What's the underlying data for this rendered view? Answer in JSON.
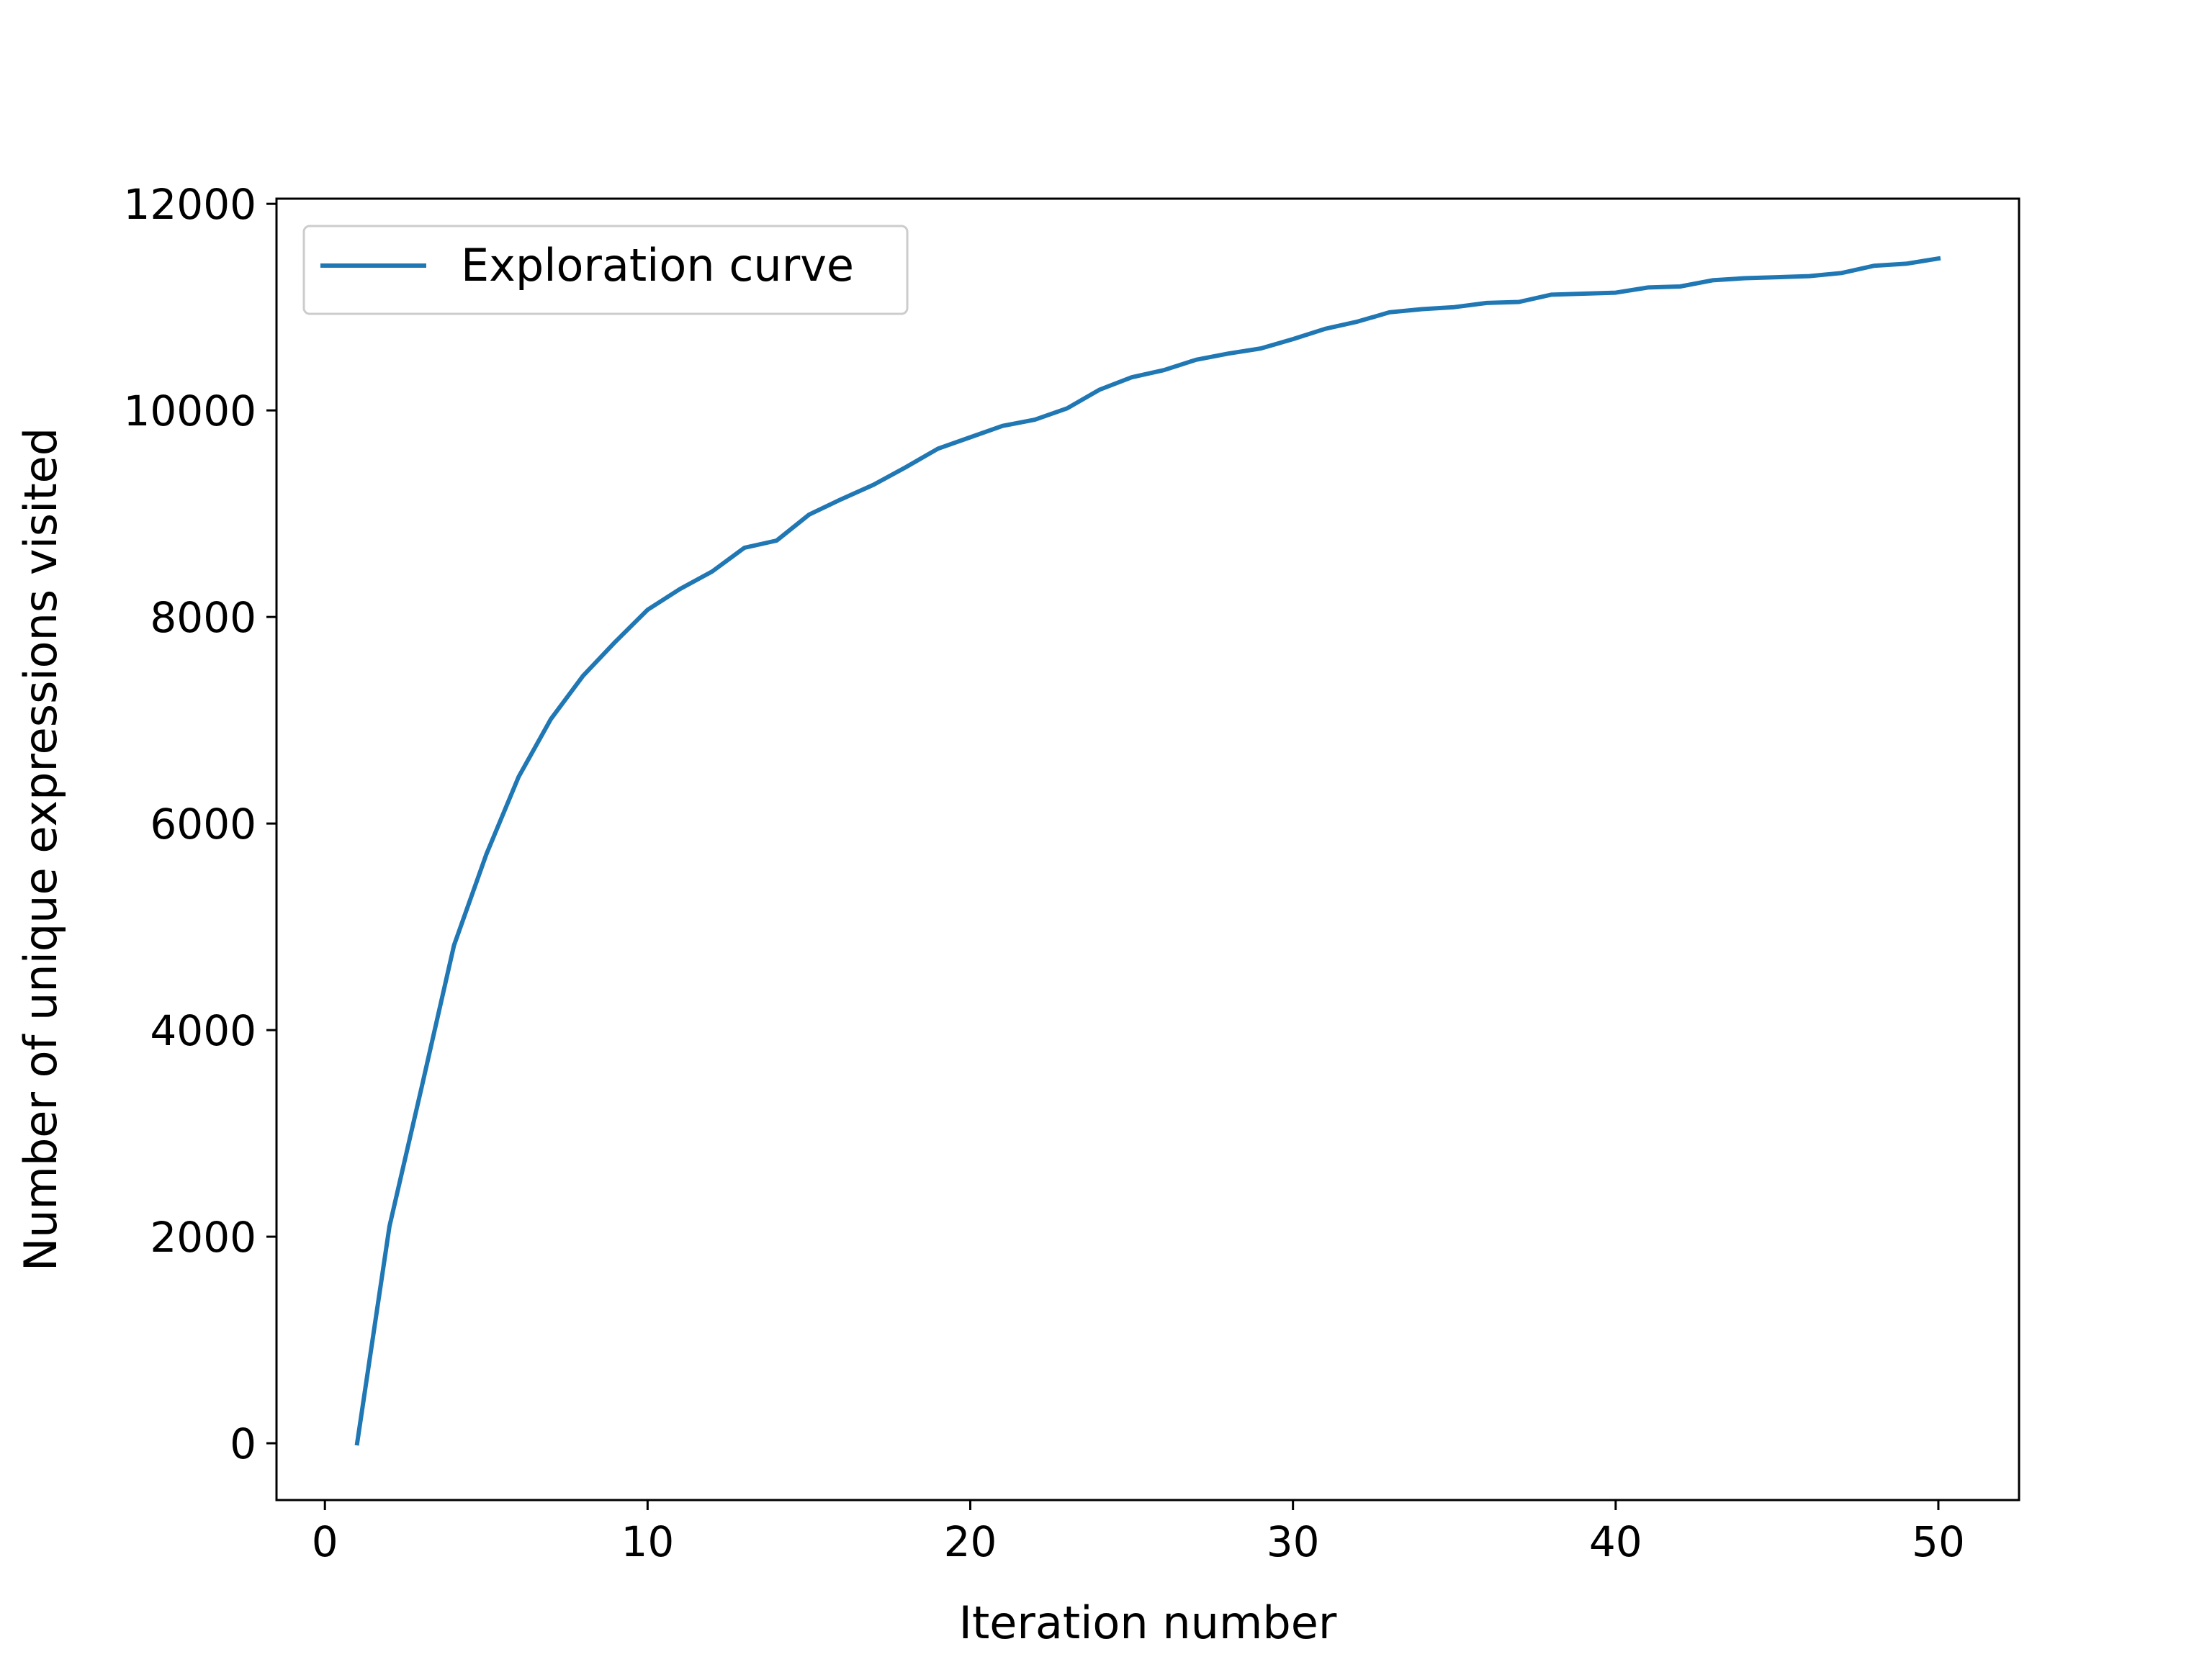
{
  "chart_data": {
    "type": "line",
    "title": "",
    "xlabel": "Iteration number",
    "ylabel": "Number of unique expressions visited",
    "xlim": [
      -1.5,
      52.5
    ],
    "ylim": [
      -550,
      12050
    ],
    "x_ticks": [
      0,
      10,
      20,
      30,
      40,
      50
    ],
    "x_tick_labels": [
      "0",
      "10",
      "20",
      "30",
      "40",
      "50"
    ],
    "y_ticks": [
      0,
      2000,
      4000,
      6000,
      8000,
      10000,
      12000
    ],
    "y_tick_labels": [
      "0",
      "2000",
      "4000",
      "6000",
      "8000",
      "10000",
      "12000"
    ],
    "grid": false,
    "legend_position": "upper-left",
    "series": [
      {
        "name": "Exploration curve",
        "color": "#1f77b4",
        "x": [
          1,
          2,
          3,
          4,
          5,
          6,
          7,
          8,
          9,
          10,
          11,
          12,
          13,
          14,
          15,
          16,
          17,
          18,
          19,
          20,
          21,
          22,
          23,
          24,
          25,
          26,
          27,
          28,
          29,
          30,
          31,
          32,
          33,
          34,
          35,
          36,
          37,
          38,
          39,
          40,
          41,
          42,
          43,
          44,
          45,
          46,
          47,
          48,
          49,
          50
        ],
        "y": [
          0,
          2100,
          3450,
          4820,
          5700,
          6450,
          7010,
          7430,
          7760,
          8070,
          8270,
          8440,
          8670,
          8740,
          8990,
          9140,
          9280,
          9450,
          9630,
          9740,
          9850,
          9910,
          10020,
          10200,
          10320,
          10390,
          10490,
          10550,
          10600,
          10690,
          10790,
          10860,
          10950,
          10980,
          11000,
          11040,
          11050,
          11120,
          11130,
          11140,
          11190,
          11200,
          11260,
          11280,
          11290,
          11300,
          11330,
          11400,
          11420,
          11470
        ]
      }
    ]
  }
}
